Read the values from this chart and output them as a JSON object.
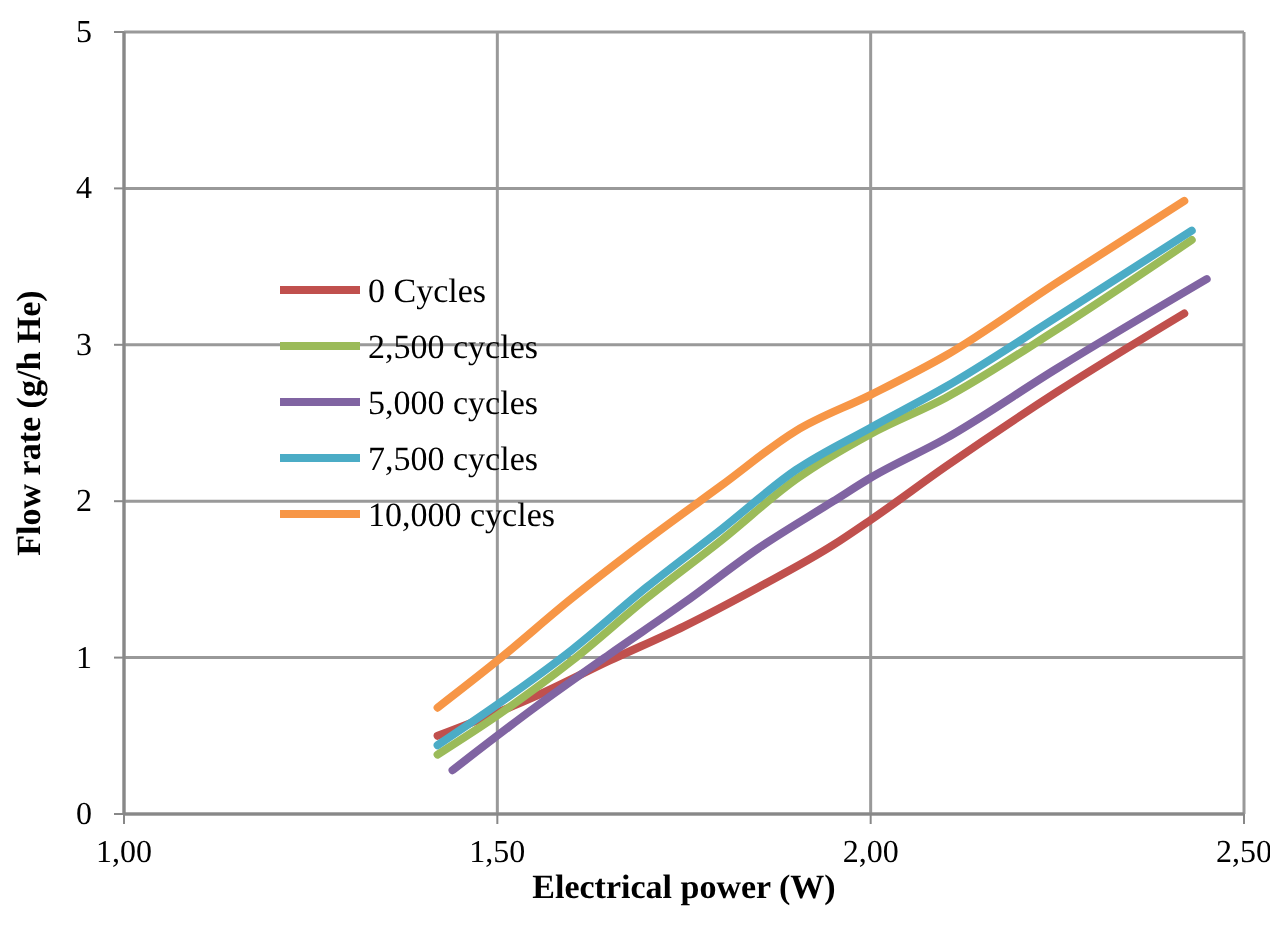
{
  "chart_data": {
    "type": "line",
    "xlabel": "Electrical power (W)",
    "ylabel": "Flow rate (g/h He)",
    "xlim": [
      1,
      2.5
    ],
    "xticks": [
      {
        "value": 1,
        "label": "1,00"
      },
      {
        "value": 1.5,
        "label": "1,50"
      },
      {
        "value": 2,
        "label": "2,00"
      },
      {
        "value": 2.5,
        "label": "2,50"
      }
    ],
    "ylim": [
      0,
      5
    ],
    "yticks": [
      0,
      1,
      2,
      3,
      4,
      5
    ],
    "grid": true,
    "legend": "left",
    "marker": "none",
    "line_style": "solid",
    "series": [
      {
        "name": "0 Cycles",
        "color": "#c0504d",
        "x": [
          1.42,
          1.55,
          1.65,
          1.75,
          1.85,
          1.95,
          2.0,
          2.1,
          2.25,
          2.42
        ],
        "values": [
          0.5,
          0.75,
          0.98,
          1.2,
          1.45,
          1.72,
          1.88,
          2.22,
          2.7,
          3.2
        ]
      },
      {
        "name": "2,500 cycles",
        "color": "#9bbb59",
        "x": [
          1.42,
          1.5,
          1.6,
          1.7,
          1.8,
          1.9,
          2.0,
          2.1,
          2.25,
          2.43
        ],
        "values": [
          0.38,
          0.63,
          0.98,
          1.38,
          1.75,
          2.14,
          2.43,
          2.66,
          3.1,
          3.67
        ]
      },
      {
        "name": "5,000 cycles",
        "color": "#8064a2",
        "x": [
          1.44,
          1.55,
          1.65,
          1.75,
          1.85,
          1.95,
          2.0,
          2.1,
          2.25,
          2.45
        ],
        "values": [
          0.28,
          0.68,
          1.02,
          1.35,
          1.7,
          2.0,
          2.15,
          2.4,
          2.85,
          3.42
        ]
      },
      {
        "name": "7,500 cycles",
        "color": "#4bacc6",
        "x": [
          1.42,
          1.5,
          1.6,
          1.7,
          1.8,
          1.9,
          2.0,
          2.1,
          2.25,
          2.43
        ],
        "values": [
          0.44,
          0.7,
          1.05,
          1.45,
          1.82,
          2.2,
          2.47,
          2.73,
          3.18,
          3.73
        ]
      },
      {
        "name": "10,000 cycles",
        "color": "#f79646",
        "x": [
          1.42,
          1.5,
          1.6,
          1.7,
          1.8,
          1.9,
          2.0,
          2.1,
          2.25,
          2.42
        ],
        "values": [
          0.68,
          0.98,
          1.38,
          1.75,
          2.1,
          2.45,
          2.68,
          2.93,
          3.4,
          3.92
        ]
      }
    ]
  }
}
